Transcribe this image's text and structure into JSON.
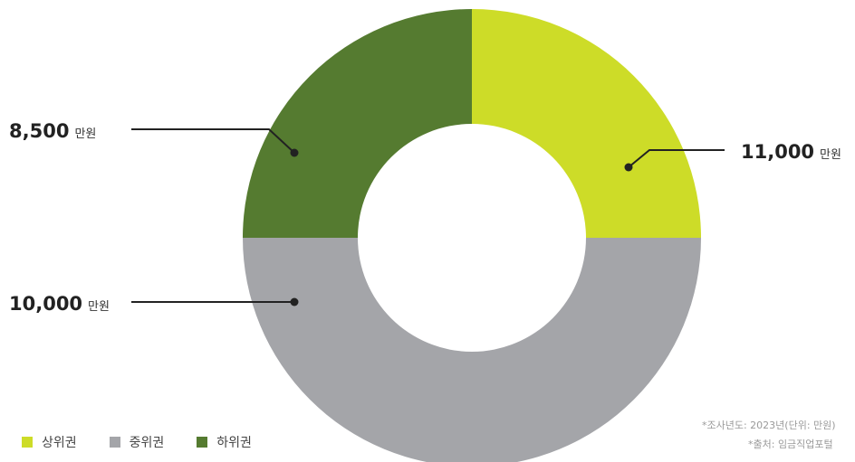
{
  "chart_data": {
    "type": "pie",
    "categories": [
      "상위권",
      "중위권",
      "하위권"
    ],
    "values": [
      11000,
      10000,
      8500
    ],
    "value_labels": [
      "11,000",
      "10,000",
      "8,500"
    ],
    "unit": "만원",
    "colors": [
      "#cddc28",
      "#a4a5a9",
      "#557b30"
    ],
    "legend_placement": "bottom-left"
  },
  "legend": {
    "items": [
      {
        "label": "상위권",
        "color": "#cddc28"
      },
      {
        "label": "중위권",
        "color": "#a4a5a9"
      },
      {
        "label": "하위권",
        "color": "#557b30"
      }
    ]
  },
  "notes": {
    "year": "*조사년도: 2023년(단위: 만원)",
    "source": "*출처: 임금직업포털"
  }
}
